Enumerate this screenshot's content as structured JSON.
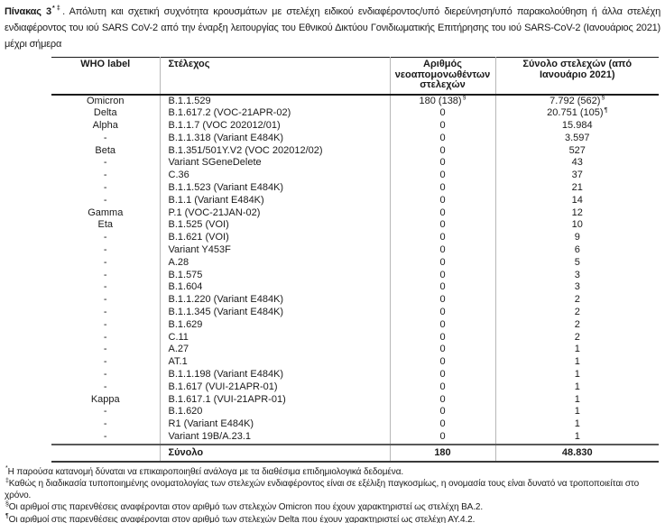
{
  "title": {
    "label": "Πίνακας 3",
    "label_sup": "*‡",
    "text": ". Απόλυτη και σχετική συχνότητα κρουσμάτων με στελέχη ειδικού ενδιαφέροντος/υπό διερεύνηση/υπό παρακολούθηση ή άλλα στελέχη ενδιαφέροντος του ιού SARS CoV-2 από την έναρξη λειτουργίας του Εθνικού Δικτύου Γονιδιωματικής Επιτήρησης του ιού SARS-CoV-2 (Ιανουάριος 2021) μέχρι σήμερα"
  },
  "table": {
    "headers": [
      "WHO label",
      "Στέλεχος",
      "Αριθμός νεοαπομονωθέντων στελεχών",
      "Σύνολο στελεχών (από Ιανουάριο 2021)"
    ],
    "rows": [
      {
        "who": "Omicron",
        "strain": "B.1.1.529",
        "new": "180 (138)",
        "new_sup": "§",
        "total": "7.792 (562)",
        "total_sup": "§"
      },
      {
        "who": "Delta",
        "strain": "B.1.617.2 (VOC-21APR-02)",
        "new": "0",
        "new_sup": "",
        "total": "20.751 (105)",
        "total_sup": "¶"
      },
      {
        "who": "Alpha",
        "strain": "B.1.1.7 (VOC 202012/01)",
        "new": "0",
        "new_sup": "",
        "total": "15.984",
        "total_sup": ""
      },
      {
        "who": "-",
        "strain": "B.1.1.318 (Variant E484K)",
        "new": "0",
        "new_sup": "",
        "total": "3.597",
        "total_sup": ""
      },
      {
        "who": "Beta",
        "strain": "B.1.351/501Y.V2 (VOC 202012/02)",
        "new": "0",
        "new_sup": "",
        "total": "527",
        "total_sup": ""
      },
      {
        "who": "-",
        "strain": "Variant SGeneDelete",
        "new": "0",
        "new_sup": "",
        "total": "43",
        "total_sup": ""
      },
      {
        "who": "-",
        "strain": "C.36",
        "new": "0",
        "new_sup": "",
        "total": "37",
        "total_sup": ""
      },
      {
        "who": "-",
        "strain": "B.1.1.523 (Variant E484K)",
        "new": "0",
        "new_sup": "",
        "total": "21",
        "total_sup": ""
      },
      {
        "who": "-",
        "strain": "B.1.1 (Variant E484K)",
        "new": "0",
        "new_sup": "",
        "total": "14",
        "total_sup": ""
      },
      {
        "who": "Gamma",
        "strain": "P.1 (VOC-21JAN-02)",
        "new": "0",
        "new_sup": "",
        "total": "12",
        "total_sup": ""
      },
      {
        "who": "Eta",
        "strain": "B.1.525 (VOI)",
        "new": "0",
        "new_sup": "",
        "total": "10",
        "total_sup": ""
      },
      {
        "who": "-",
        "strain": "B.1.621 (VOI)",
        "new": "0",
        "new_sup": "",
        "total": "9",
        "total_sup": ""
      },
      {
        "who": "-",
        "strain": "Variant Y453F",
        "new": "0",
        "new_sup": "",
        "total": "6",
        "total_sup": ""
      },
      {
        "who": "-",
        "strain": "A.28",
        "new": "0",
        "new_sup": "",
        "total": "5",
        "total_sup": ""
      },
      {
        "who": "-",
        "strain": "B.1.575",
        "new": "0",
        "new_sup": "",
        "total": "3",
        "total_sup": ""
      },
      {
        "who": "-",
        "strain": "B.1.604",
        "new": "0",
        "new_sup": "",
        "total": "3",
        "total_sup": ""
      },
      {
        "who": "-",
        "strain": "B.1.1.220 (Variant E484K)",
        "new": "0",
        "new_sup": "",
        "total": "2",
        "total_sup": ""
      },
      {
        "who": "-",
        "strain": "B.1.1.345 (Variant E484K)",
        "new": "0",
        "new_sup": "",
        "total": "2",
        "total_sup": ""
      },
      {
        "who": "-",
        "strain": "B.1.629",
        "new": "0",
        "new_sup": "",
        "total": "2",
        "total_sup": ""
      },
      {
        "who": "-",
        "strain": "C.11",
        "new": "0",
        "new_sup": "",
        "total": "2",
        "total_sup": ""
      },
      {
        "who": "-",
        "strain": "A.27",
        "new": "0",
        "new_sup": "",
        "total": "1",
        "total_sup": ""
      },
      {
        "who": "-",
        "strain": "AT.1",
        "new": "0",
        "new_sup": "",
        "total": "1",
        "total_sup": ""
      },
      {
        "who": "-",
        "strain": "B.1.1.198 (Variant E484K)",
        "new": "0",
        "new_sup": "",
        "total": "1",
        "total_sup": ""
      },
      {
        "who": "-",
        "strain": "B.1.617 (VUI-21APR-01)",
        "new": "0",
        "new_sup": "",
        "total": "1",
        "total_sup": ""
      },
      {
        "who": "Kappa",
        "strain": "B.1.617.1 (VUI-21APR-01)",
        "new": "0",
        "new_sup": "",
        "total": "1",
        "total_sup": ""
      },
      {
        "who": "-",
        "strain": "B.1.620",
        "new": "0",
        "new_sup": "",
        "total": "1",
        "total_sup": ""
      },
      {
        "who": "-",
        "strain": "R1 (Variant E484K)",
        "new": "0",
        "new_sup": "",
        "total": "1",
        "total_sup": ""
      },
      {
        "who": "-",
        "strain": "Variant 19B/A.23.1",
        "new": "0",
        "new_sup": "",
        "total": "1",
        "total_sup": ""
      }
    ],
    "total": {
      "label": "Σύνολο",
      "new": "180",
      "total": "48.830"
    }
  },
  "footnotes": [
    {
      "marker": "*",
      "text": "Η παρούσα κατανομή δύναται να επικαιροποιηθεί ανάλογα με τα διαθέσιμα επιδημιολογικά δεδομένα."
    },
    {
      "marker": "‡",
      "text": "Καθώς η διαδικασία τυποποιημένης ονοματολογίας των στελεχών ενδιαφέροντος είναι σε εξέλιξη παγκοσμίως, η ονομασία τους είναι δυνατό να τροποποιείται στο χρόνο."
    },
    {
      "marker": "§",
      "text": "Οι αριθμοί στις παρενθέσεις αναφέρονται στον αριθμό των στελεχών Omicron που έχουν χαρακτηριστεί ως στελέχη ΒΑ.2."
    },
    {
      "marker": "¶",
      "text": "Οι αριθμοί στις παρενθέσεις αναφέρονται στον αριθμό των στελεχών Delta που έχουν χαρακτηριστεί ως στελέχη ΑΥ.4.2."
    }
  ]
}
